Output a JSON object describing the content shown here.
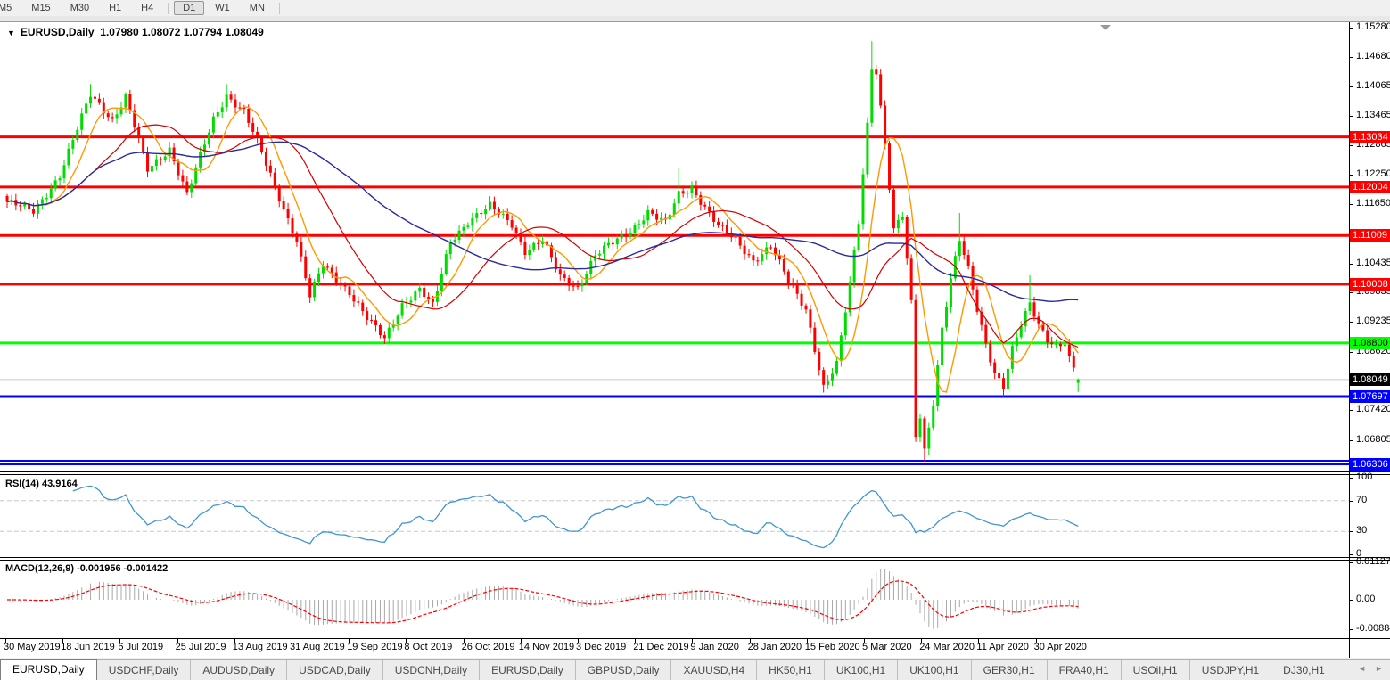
{
  "toolbar": {
    "timeframes": [
      {
        "label": "M5",
        "active": false
      },
      {
        "label": "M15",
        "active": false
      },
      {
        "label": "M30",
        "active": false
      },
      {
        "label": "H1",
        "active": false
      },
      {
        "label": "H4",
        "active": false
      },
      {
        "label": "D1",
        "active": true
      },
      {
        "label": "W1",
        "active": false
      },
      {
        "label": "MN",
        "active": false
      }
    ]
  },
  "icons": {
    "dropdown": "▼",
    "scroll_left": "◄",
    "scroll_right": "►"
  },
  "chart_data": {
    "type": "candlestick",
    "title": "EURUSD,Daily",
    "ohlc_display": "1.07980 1.08072 1.07794 1.08049",
    "last_candle": {
      "open": 1.0798,
      "high": 1.08072,
      "low": 1.07794,
      "close": 1.08049
    },
    "x_dates": [
      "30 May 2019",
      "18 Jun 2019",
      "6 Jul 2019",
      "25 Jul 2019",
      "13 Aug 2019",
      "31 Aug 2019",
      "19 Sep 2019",
      "8 Oct 2019",
      "26 Oct 2019",
      "14 Nov 2019",
      "3 Dec 2019",
      "21 Dec 2019",
      "9 Jan 2020",
      "28 Jan 2020",
      "15 Feb 2020",
      "5 Mar 2020",
      "24 Mar 2020",
      "11 Apr 2020",
      "30 Apr 2020"
    ],
    "price_ticks": [
      "1.15280",
      "1.14680",
      "1.14065",
      "1.13465",
      "1.12865",
      "1.12250",
      "1.11650",
      "1.10435",
      "1.09835",
      "1.09235",
      "1.08620",
      "1.07420",
      "1.06805",
      "1.06205"
    ],
    "price_badges": [
      {
        "label": "1.13034",
        "price": 1.13034,
        "bg": "#FF0000",
        "fg": "#FFFFFF",
        "kind": "resistance"
      },
      {
        "label": "1.12004",
        "price": 1.12004,
        "bg": "#FF0000",
        "fg": "#FFFFFF",
        "kind": "resistance"
      },
      {
        "label": "1.11009",
        "price": 1.11009,
        "bg": "#FF0000",
        "fg": "#FFFFFF",
        "kind": "resistance"
      },
      {
        "label": "1.10008",
        "price": 1.10008,
        "bg": "#FF0000",
        "fg": "#FFFFFF",
        "kind": "resistance"
      },
      {
        "label": "1.08800",
        "price": 1.088,
        "bg": "#00FF00",
        "fg": "#000000",
        "kind": "support"
      },
      {
        "label": "1.08049",
        "price": 1.08049,
        "bg": "#000000",
        "fg": "#FFFFFF",
        "kind": "current-price"
      },
      {
        "label": "1.07697",
        "price": 1.07697,
        "bg": "#0000FF",
        "fg": "#FFFFFF",
        "kind": "support"
      },
      {
        "label": "1.06306",
        "price": 1.06306,
        "bg": "#0000FF",
        "fg": "#FFFFFF",
        "kind": "support"
      }
    ],
    "horizontal_lines": [
      {
        "price": 1.13034,
        "color": "#FF0000",
        "w": 3
      },
      {
        "price": 1.12004,
        "color": "#FF0000",
        "w": 3
      },
      {
        "price": 1.11009,
        "color": "#FF0000",
        "w": 3
      },
      {
        "price": 1.10008,
        "color": "#FF0000",
        "w": 3
      },
      {
        "price": 1.088,
        "color": "#00FF00",
        "w": 3
      },
      {
        "price": 1.07697,
        "color": "#0000FF",
        "w": 3
      },
      {
        "price": 1.0638,
        "color": "#0000FF",
        "w": 2
      },
      {
        "price": 1.06306,
        "color": "#0000FF",
        "w": 2
      },
      {
        "price": 1.08049,
        "color": "#C8C8C8",
        "w": 1
      }
    ],
    "candles": {
      "count": 245,
      "up_color": "#00DC00",
      "down_color": "#FF0000",
      "close_waypoints": [
        [
          0,
          1.117
        ],
        [
          6,
          1.115
        ],
        [
          12,
          1.1225
        ],
        [
          19,
          1.139
        ],
        [
          24,
          1.134
        ],
        [
          27,
          1.1385
        ],
        [
          32,
          1.1235
        ],
        [
          37,
          1.128
        ],
        [
          41,
          1.1185
        ],
        [
          47,
          1.134
        ],
        [
          50,
          1.139
        ],
        [
          54,
          1.1355
        ],
        [
          58,
          1.127
        ],
        [
          62,
          1.118
        ],
        [
          66,
          1.109
        ],
        [
          69,
          1.0975
        ],
        [
          72,
          1.104
        ],
        [
          78,
          1.0985
        ],
        [
          82,
          1.093
        ],
        [
          86,
          1.0888
        ],
        [
          90,
          1.096
        ],
        [
          94,
          1.099
        ],
        [
          97,
          1.0955
        ],
        [
          101,
          1.109
        ],
        [
          105,
          1.113
        ],
        [
          110,
          1.116
        ],
        [
          115,
          1.1125
        ],
        [
          118,
          1.107
        ],
        [
          122,
          1.109
        ],
        [
          126,
          1.1015
        ],
        [
          130,
          1.0995
        ],
        [
          134,
          1.106
        ],
        [
          138,
          1.1085
        ],
        [
          142,
          1.111
        ],
        [
          146,
          1.115
        ],
        [
          150,
          1.1125
        ],
        [
          153,
          1.1185
        ],
        [
          156,
          1.12
        ],
        [
          159,
          1.116
        ],
        [
          162,
          1.112
        ],
        [
          166,
          1.109
        ],
        [
          170,
          1.105
        ],
        [
          174,
          1.108
        ],
        [
          178,
          1.1005
        ],
        [
          182,
          1.095
        ],
        [
          186,
          1.079
        ],
        [
          189,
          1.0835
        ],
        [
          192,
          1.1
        ],
        [
          194,
          1.113
        ],
        [
          196,
          1.133
        ],
        [
          197,
          1.145
        ],
        [
          198,
          1.144
        ],
        [
          200,
          1.129
        ],
        [
          202,
          1.111
        ],
        [
          204,
          1.114
        ],
        [
          206,
          1.096
        ],
        [
          207,
          1.069
        ],
        [
          208,
          1.073
        ],
        [
          209,
          1.066
        ],
        [
          211,
          1.076
        ],
        [
          213,
          1.091
        ],
        [
          215,
          1.101
        ],
        [
          217,
          1.109
        ],
        [
          219,
          1.103
        ],
        [
          221,
          1.095
        ],
        [
          223,
          1.088
        ],
        [
          225,
          1.082
        ],
        [
          227,
          1.079
        ],
        [
          229,
          1.0865
        ],
        [
          231,
          1.0915
        ],
        [
          233,
          1.096
        ],
        [
          235,
          1.092
        ],
        [
          237,
          1.089
        ],
        [
          239,
          1.0875
        ],
        [
          241,
          1.088
        ],
        [
          242,
          1.0845
        ],
        [
          244,
          1.08049
        ]
      ],
      "long_wicks": [
        [
          19,
          "h",
          1.1412
        ],
        [
          50,
          "h",
          1.1412
        ],
        [
          86,
          "l",
          1.0878
        ],
        [
          153,
          "h",
          1.1239
        ],
        [
          186,
          "l",
          1.0778
        ],
        [
          197,
          "h",
          1.15
        ],
        [
          209,
          "l",
          1.0636
        ],
        [
          217,
          "h",
          1.1147
        ],
        [
          227,
          "l",
          1.0768
        ],
        [
          233,
          "h",
          1.1019
        ],
        [
          244,
          "l",
          1.07794
        ]
      ]
    },
    "moving_averages": [
      {
        "name": "fast",
        "period": 8,
        "color": "#FF9900",
        "width": 1.4
      },
      {
        "name": "medium",
        "period": 21,
        "color": "#D40000",
        "width": 1.2
      },
      {
        "name": "slow",
        "period": 55,
        "color": "#2A2AA0",
        "width": 1.4
      }
    ],
    "rsi": {
      "label": "RSI(14) 43.9164",
      "period": 14,
      "value": 43.9164,
      "levels": [
        30,
        70
      ],
      "ticks": [
        "100",
        "70",
        "30",
        "0"
      ],
      "tick_values": [
        100,
        70,
        30,
        0
      ],
      "color": "#3E96D2"
    },
    "macd": {
      "label": "MACD(12,26,9) -0.001956 -0.001422",
      "fast": 12,
      "slow": 26,
      "signal_period": 9,
      "values": [
        -0.001956,
        -0.001422
      ],
      "ticks": [
        "0.011277",
        "0.00",
        "-0.008845"
      ],
      "tick_values": [
        0.011277,
        0,
        -0.008845
      ],
      "hist_color": "#A8A8A8",
      "signal_color": "#FF0000"
    }
  },
  "tabs": {
    "items": [
      {
        "label": "EURUSD,Daily",
        "active": true
      },
      {
        "label": "USDCHF,Daily",
        "active": false
      },
      {
        "label": "AUDUSD,Daily",
        "active": false
      },
      {
        "label": "USDCAD,Daily",
        "active": false
      },
      {
        "label": "USDCNH,Daily",
        "active": false
      },
      {
        "label": "EURUSD,Daily",
        "active": false
      },
      {
        "label": "GBPUSD,Daily",
        "active": false
      },
      {
        "label": "XAUUSD,H4",
        "active": false
      },
      {
        "label": "HK50,H1",
        "active": false
      },
      {
        "label": "UK100,H1",
        "active": false
      },
      {
        "label": "UK100,H1",
        "active": false
      },
      {
        "label": "GER30,H1",
        "active": false
      },
      {
        "label": "FRA40,H1",
        "active": false
      },
      {
        "label": "USOil,H1",
        "active": false
      },
      {
        "label": "USDJPY,H1",
        "active": false
      },
      {
        "label": "DJ30,H1",
        "active": false
      }
    ]
  }
}
